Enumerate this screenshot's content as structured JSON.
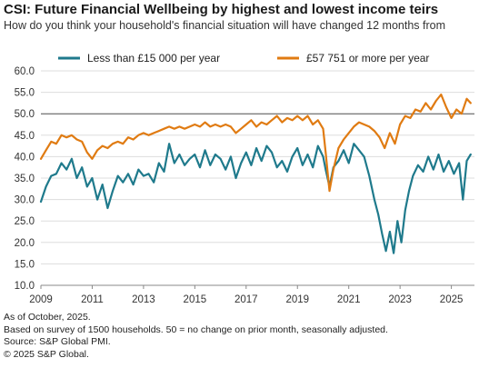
{
  "title": "CSI: Future Financial Wellbeing by highest and lowest income teirs",
  "subtitle": "How do you think your household's financial situation will have changed 12 months from",
  "footer": {
    "line1": "As of October, 2025.",
    "line2": "Based on survey of 1500 households. 50 = no change on prior month, seasonally adjusted.",
    "line3": "Source: S&P Global PMI.",
    "line4": "© 2025 S&P Global."
  },
  "colors": {
    "low_income": "#1f7a8c",
    "high_income": "#e07b12",
    "reference_line": "#555555",
    "grid": "#dddddd"
  },
  "chart_data": {
    "type": "line",
    "title": "CSI: Future Financial Wellbeing by highest and lowest income teirs",
    "subtitle": "How do you think your household's financial situation will have changed 12 months from",
    "xlabel": "",
    "ylabel": "",
    "ylim": [
      10.0,
      60.0
    ],
    "yticks": [
      "10.0",
      "15.0",
      "20.0",
      "25.0",
      "30.0",
      "35.0",
      "40.0",
      "45.0",
      "50.0",
      "55.0",
      "60.0"
    ],
    "xlim": [
      2009.0,
      2025.9
    ],
    "xticks": [
      "2009",
      "2011",
      "2013",
      "2015",
      "2017",
      "2019",
      "2021",
      "2023",
      "2025"
    ],
    "reference_line": 50.0,
    "grid": "horizontal",
    "legend_position": "top",
    "series": [
      {
        "name": "Less than £15 000 per year",
        "color": "#1f7a8c",
        "points": [
          [
            2009.0,
            29.5
          ],
          [
            2009.2,
            33.0
          ],
          [
            2009.4,
            35.5
          ],
          [
            2009.6,
            36.0
          ],
          [
            2009.8,
            38.5
          ],
          [
            2010.0,
            37.0
          ],
          [
            2010.2,
            39.5
          ],
          [
            2010.4,
            35.0
          ],
          [
            2010.6,
            37.5
          ],
          [
            2010.8,
            33.0
          ],
          [
            2011.0,
            35.0
          ],
          [
            2011.2,
            30.0
          ],
          [
            2011.4,
            33.5
          ],
          [
            2011.6,
            28.0
          ],
          [
            2011.8,
            32.0
          ],
          [
            2012.0,
            35.5
          ],
          [
            2012.2,
            34.0
          ],
          [
            2012.4,
            36.0
          ],
          [
            2012.6,
            33.5
          ],
          [
            2012.8,
            37.0
          ],
          [
            2013.0,
            35.5
          ],
          [
            2013.2,
            36.0
          ],
          [
            2013.4,
            34.0
          ],
          [
            2013.6,
            38.5
          ],
          [
            2013.8,
            36.5
          ],
          [
            2014.0,
            43.0
          ],
          [
            2014.2,
            38.5
          ],
          [
            2014.4,
            40.5
          ],
          [
            2014.6,
            38.0
          ],
          [
            2014.8,
            39.5
          ],
          [
            2015.0,
            40.5
          ],
          [
            2015.2,
            37.5
          ],
          [
            2015.4,
            41.5
          ],
          [
            2015.6,
            38.0
          ],
          [
            2015.8,
            40.5
          ],
          [
            2016.0,
            39.5
          ],
          [
            2016.2,
            37.0
          ],
          [
            2016.4,
            40.0
          ],
          [
            2016.6,
            35.0
          ],
          [
            2016.8,
            38.5
          ],
          [
            2017.0,
            41.0
          ],
          [
            2017.2,
            38.0
          ],
          [
            2017.4,
            42.0
          ],
          [
            2017.6,
            39.0
          ],
          [
            2017.8,
            42.5
          ],
          [
            2018.0,
            41.0
          ],
          [
            2018.2,
            37.5
          ],
          [
            2018.4,
            39.0
          ],
          [
            2018.6,
            36.5
          ],
          [
            2018.8,
            40.0
          ],
          [
            2019.0,
            42.0
          ],
          [
            2019.2,
            38.0
          ],
          [
            2019.4,
            40.5
          ],
          [
            2019.6,
            37.5
          ],
          [
            2019.8,
            42.5
          ],
          [
            2020.0,
            40.0
          ],
          [
            2020.1,
            37.0
          ],
          [
            2020.25,
            33.0
          ],
          [
            2020.4,
            37.5
          ],
          [
            2020.6,
            39.0
          ],
          [
            2020.8,
            41.5
          ],
          [
            2021.0,
            38.5
          ],
          [
            2021.2,
            43.0
          ],
          [
            2021.4,
            41.5
          ],
          [
            2021.6,
            40.0
          ],
          [
            2021.8,
            35.5
          ],
          [
            2022.0,
            30.0
          ],
          [
            2022.15,
            26.5
          ],
          [
            2022.3,
            22.0
          ],
          [
            2022.45,
            18.0
          ],
          [
            2022.6,
            22.5
          ],
          [
            2022.75,
            17.5
          ],
          [
            2022.9,
            25.0
          ],
          [
            2023.05,
            20.0
          ],
          [
            2023.2,
            27.5
          ],
          [
            2023.35,
            32.0
          ],
          [
            2023.5,
            35.5
          ],
          [
            2023.7,
            38.0
          ],
          [
            2023.9,
            36.5
          ],
          [
            2024.1,
            40.0
          ],
          [
            2024.3,
            37.0
          ],
          [
            2024.5,
            40.5
          ],
          [
            2024.7,
            36.5
          ],
          [
            2024.9,
            39.0
          ],
          [
            2025.1,
            36.0
          ],
          [
            2025.3,
            38.5
          ],
          [
            2025.45,
            30.0
          ],
          [
            2025.6,
            39.0
          ],
          [
            2025.75,
            40.5
          ]
        ]
      },
      {
        "name": "£57 751 or more per year",
        "color": "#e07b12",
        "points": [
          [
            2009.0,
            39.5
          ],
          [
            2009.2,
            41.5
          ],
          [
            2009.4,
            43.5
          ],
          [
            2009.6,
            43.0
          ],
          [
            2009.8,
            45.0
          ],
          [
            2010.0,
            44.5
          ],
          [
            2010.2,
            45.0
          ],
          [
            2010.4,
            44.0
          ],
          [
            2010.6,
            43.5
          ],
          [
            2010.8,
            41.0
          ],
          [
            2011.0,
            39.5
          ],
          [
            2011.2,
            41.5
          ],
          [
            2011.4,
            42.5
          ],
          [
            2011.6,
            42.0
          ],
          [
            2011.8,
            43.0
          ],
          [
            2012.0,
            43.5
          ],
          [
            2012.2,
            43.0
          ],
          [
            2012.4,
            44.5
          ],
          [
            2012.6,
            44.0
          ],
          [
            2012.8,
            45.0
          ],
          [
            2013.0,
            45.5
          ],
          [
            2013.2,
            45.0
          ],
          [
            2013.4,
            45.5
          ],
          [
            2013.6,
            46.0
          ],
          [
            2013.8,
            46.5
          ],
          [
            2014.0,
            47.0
          ],
          [
            2014.2,
            46.5
          ],
          [
            2014.4,
            47.0
          ],
          [
            2014.6,
            46.5
          ],
          [
            2014.8,
            47.0
          ],
          [
            2015.0,
            47.5
          ],
          [
            2015.2,
            47.0
          ],
          [
            2015.4,
            48.0
          ],
          [
            2015.6,
            47.0
          ],
          [
            2015.8,
            47.5
          ],
          [
            2016.0,
            47.0
          ],
          [
            2016.2,
            47.5
          ],
          [
            2016.4,
            47.0
          ],
          [
            2016.6,
            45.5
          ],
          [
            2016.8,
            46.5
          ],
          [
            2017.0,
            47.5
          ],
          [
            2017.2,
            48.5
          ],
          [
            2017.4,
            47.0
          ],
          [
            2017.6,
            48.0
          ],
          [
            2017.8,
            47.5
          ],
          [
            2018.0,
            48.5
          ],
          [
            2018.2,
            49.5
          ],
          [
            2018.4,
            48.0
          ],
          [
            2018.6,
            49.0
          ],
          [
            2018.8,
            48.5
          ],
          [
            2019.0,
            49.5
          ],
          [
            2019.2,
            48.5
          ],
          [
            2019.4,
            49.5
          ],
          [
            2019.6,
            47.5
          ],
          [
            2019.8,
            48.5
          ],
          [
            2020.0,
            46.5
          ],
          [
            2020.1,
            41.0
          ],
          [
            2020.25,
            32.0
          ],
          [
            2020.4,
            37.0
          ],
          [
            2020.6,
            42.0
          ],
          [
            2020.8,
            44.0
          ],
          [
            2021.0,
            45.5
          ],
          [
            2021.2,
            47.0
          ],
          [
            2021.4,
            48.0
          ],
          [
            2021.6,
            47.5
          ],
          [
            2021.8,
            47.0
          ],
          [
            2022.0,
            46.0
          ],
          [
            2022.2,
            44.5
          ],
          [
            2022.4,
            42.0
          ],
          [
            2022.6,
            45.5
          ],
          [
            2022.8,
            43.0
          ],
          [
            2023.0,
            47.5
          ],
          [
            2023.2,
            49.5
          ],
          [
            2023.4,
            49.0
          ],
          [
            2023.6,
            51.0
          ],
          [
            2023.8,
            50.5
          ],
          [
            2024.0,
            52.5
          ],
          [
            2024.2,
            51.0
          ],
          [
            2024.4,
            53.0
          ],
          [
            2024.6,
            54.5
          ],
          [
            2024.8,
            51.5
          ],
          [
            2025.0,
            49.0
          ],
          [
            2025.2,
            51.0
          ],
          [
            2025.4,
            50.0
          ],
          [
            2025.6,
            53.5
          ],
          [
            2025.75,
            52.5
          ]
        ]
      }
    ]
  }
}
